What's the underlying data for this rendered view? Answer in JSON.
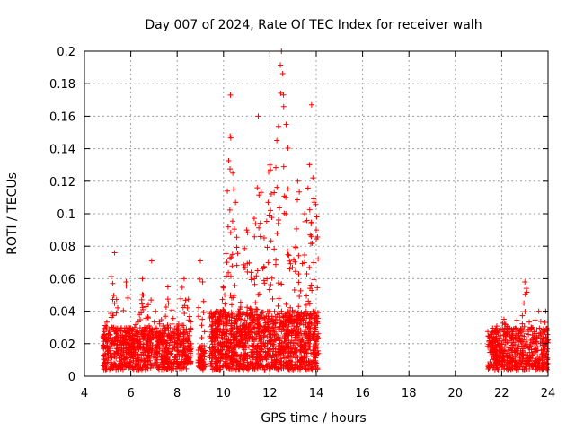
{
  "chart_data": {
    "type": "scatter",
    "title": "Day 007 of 2024, Rate Of TEC Index for receiver walh",
    "xlabel": "GPS time / hours",
    "ylabel": "ROTI / TECUs",
    "xlim": [
      4,
      24
    ],
    "ylim": [
      0,
      0.2
    ],
    "x_ticks": [
      "4",
      "6",
      "8",
      "10",
      "12",
      "14",
      "16",
      "18",
      "20",
      "22",
      "24"
    ],
    "y_ticks": [
      "0",
      "0.02",
      "0.04",
      "0.06",
      "0.08",
      "0.1",
      "0.12",
      "0.14",
      "0.16",
      "0.18",
      "0.2"
    ],
    "grid": true,
    "marker": "+",
    "marker_color": "#ff0000",
    "series": [
      {
        "name": "ROTI",
        "segments": [
          {
            "x_range": [
              4.8,
              8.6
            ],
            "base": [
              0.004,
              0.03
            ],
            "peaks": [
              [
                5.3,
                0.076
              ],
              [
                5.8,
                0.058
              ],
              [
                6.5,
                0.06
              ],
              [
                6.9,
                0.071
              ],
              [
                7.6,
                0.055
              ],
              [
                8.3,
                0.06
              ]
            ],
            "density": 900
          },
          {
            "x_range": [
              8.9,
              9.2
            ],
            "base": [
              0.004,
              0.02
            ],
            "peaks": [
              [
                9.0,
                0.071
              ],
              [
                9.1,
                0.058
              ]
            ],
            "density": 70
          },
          {
            "x_range": [
              9.4,
              14.1
            ],
            "base": [
              0.004,
              0.04
            ],
            "peaks": [
              [
                10.3,
                0.173
              ],
              [
                10.4,
                0.125
              ],
              [
                11.0,
                0.09
              ],
              [
                11.5,
                0.16
              ],
              [
                12.0,
                0.13
              ],
              [
                12.3,
                0.145
              ],
              [
                12.5,
                0.2
              ],
              [
                12.7,
                0.155
              ],
              [
                13.2,
                0.12
              ],
              [
                13.5,
                0.1
              ],
              [
                13.8,
                0.167
              ],
              [
                14.0,
                0.09
              ]
            ],
            "density": 1500
          },
          {
            "x_range": [
              21.4,
              24.0
            ],
            "base": [
              0.004,
              0.03
            ],
            "peaks": [
              [
                22.1,
                0.035
              ],
              [
                23.0,
                0.058
              ],
              [
                23.6,
                0.04
              ],
              [
                23.9,
                0.04
              ]
            ],
            "density": 550
          }
        ]
      }
    ]
  }
}
